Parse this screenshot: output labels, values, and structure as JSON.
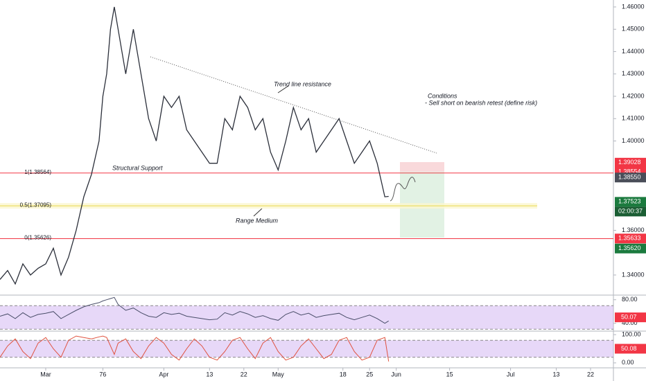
{
  "chart_data": [
    {
      "type": "line",
      "color": "#2a2e39",
      "x": [
        49,
        51,
        53,
        55,
        57,
        59,
        61,
        63,
        65,
        67,
        69,
        71,
        73,
        75,
        76,
        77,
        78,
        79,
        80,
        82,
        84,
        86,
        88,
        90,
        92,
        94,
        96,
        98,
        100,
        102,
        104,
        106,
        108,
        110,
        112,
        114,
        116,
        118,
        120,
        122,
        124,
        126,
        128,
        130,
        132,
        134,
        136,
        138,
        140,
        142,
        144,
        146,
        148,
        150,
        151
      ],
      "values": [
        1.338,
        1.342,
        1.336,
        1.345,
        1.34,
        1.343,
        1.345,
        1.352,
        1.34,
        1.348,
        1.36,
        1.375,
        1.385,
        1.4,
        1.42,
        1.43,
        1.45,
        1.46,
        1.45,
        1.43,
        1.45,
        1.43,
        1.41,
        1.4,
        1.42,
        1.415,
        1.42,
        1.405,
        1.4,
        1.395,
        1.39,
        1.39,
        1.41,
        1.405,
        1.42,
        1.415,
        1.405,
        1.41,
        1.395,
        1.387,
        1.4,
        1.415,
        1.405,
        1.41,
        1.395,
        1.4,
        1.405,
        1.41,
        1.4,
        1.39,
        1.395,
        1.4,
        1.39,
        1.375,
        1.3752
      ],
      "xlim": [
        49,
        210
      ],
      "xticks": [
        {
          "value": 61,
          "label": "Mar"
        },
        76,
        {
          "value": 92,
          "label": "Apr"
        },
        {
          "value": 104,
          "label": "13"
        },
        {
          "value": 113,
          "label": "22"
        },
        {
          "value": 122,
          "label": "May"
        },
        {
          "value": 139,
          "label": "18"
        },
        {
          "value": 146,
          "label": "25"
        },
        {
          "value": 153,
          "label": "Jun"
        },
        {
          "value": 167,
          "label": "15"
        },
        {
          "value": 183,
          "label": "Jul"
        },
        {
          "value": 195,
          "label": "13"
        },
        {
          "value": 204,
          "label": "22"
        }
      ],
      "ylim": [
        1.331,
        1.4631
      ],
      "yticks": [
        {
          "value": 1.46,
          "label": "1.46000"
        },
        {
          "value": 1.45,
          "label": "1.45000"
        },
        {
          "value": 1.44,
          "label": "1.44000"
        },
        {
          "value": 1.43,
          "label": "1.43000"
        },
        {
          "value": 1.42,
          "label": "1.42000"
        },
        {
          "value": 1.41,
          "label": "1.41000"
        },
        {
          "value": 1.4,
          "label": "1.40000"
        },
        {
          "value": 1.36,
          "label": "1.36000"
        },
        {
          "value": 1.34,
          "label": "1.34000"
        }
      ],
      "levels": [
        {
          "label": "1(1.38564)",
          "value": 1.38564,
          "color": "#f23645"
        },
        {
          "label": "0.5(1.37095)",
          "value": 1.37095,
          "color": "#e8d84a"
        },
        {
          "label": "0(1.35626)",
          "value": 1.35626,
          "color": "#f23645"
        }
      ],
      "price_tags": [
        {
          "value": 1.39028,
          "label": "1.39028",
          "color": "#f23645"
        },
        {
          "value": 1.38554,
          "label": "1.38554",
          "color": "#f23645"
        },
        {
          "value": 1.3855,
          "label": "1.38550",
          "color": "#4a4e59"
        },
        {
          "value": 1.37523,
          "label": "1.37523",
          "color": "#1b7a3e"
        },
        {
          "value": 1.35633,
          "label": "1.35633",
          "color": "#f23645"
        },
        {
          "value": 1.3562,
          "label": "1.35620",
          "color": "#1b7a3e"
        }
      ],
      "countdown": "02:00:37",
      "annotations": [
        "Trend line resistance",
        "Structural Support",
        "Range Medium",
        "Conditions",
        "- Sell short on bearish retest (define risk)"
      ]
    },
    {
      "type": "line",
      "color": "#4a4e69",
      "values": [
        52,
        56,
        48,
        58,
        50,
        55,
        57,
        60,
        48,
        55,
        62,
        68,
        72,
        75,
        78,
        80,
        82,
        84,
        72,
        62,
        66,
        58,
        52,
        50,
        58,
        55,
        57,
        52,
        50,
        48,
        46,
        47,
        58,
        54,
        60,
        56,
        50,
        53,
        48,
        45,
        55,
        60,
        54,
        57,
        50,
        53,
        55,
        57,
        50,
        46,
        50,
        54,
        48,
        40,
        44
      ],
      "ylim": [
        26.7,
        86.7
      ],
      "yticks": [
        {
          "value": 80,
          "label": "80.00"
        },
        {
          "value": 40,
          "label": "40.00"
        }
      ],
      "band": [
        30,
        70
      ],
      "last_tag": 50.07,
      "tag_color": "#f23645"
    },
    {
      "type": "line",
      "color": "#e0523f",
      "values": [
        20,
        60,
        85,
        40,
        15,
        70,
        90,
        50,
        20,
        80,
        95,
        90,
        85,
        92,
        95,
        90,
        60,
        30,
        70,
        85,
        40,
        15,
        60,
        90,
        70,
        30,
        10,
        50,
        85,
        60,
        20,
        10,
        40,
        80,
        90,
        50,
        15,
        70,
        90,
        40,
        10,
        20,
        60,
        85,
        50,
        15,
        30,
        80,
        90,
        40,
        10,
        20,
        80,
        90,
        5
      ],
      "ylim": [
        -17.5,
        110
      ],
      "yticks": [
        {
          "value": 100,
          "label": "100.00"
        },
        {
          "value": 0,
          "label": "0.00"
        }
      ],
      "band": [
        20,
        80
      ],
      "last_tag": 50.08,
      "tag_color": "#f23645"
    }
  ]
}
